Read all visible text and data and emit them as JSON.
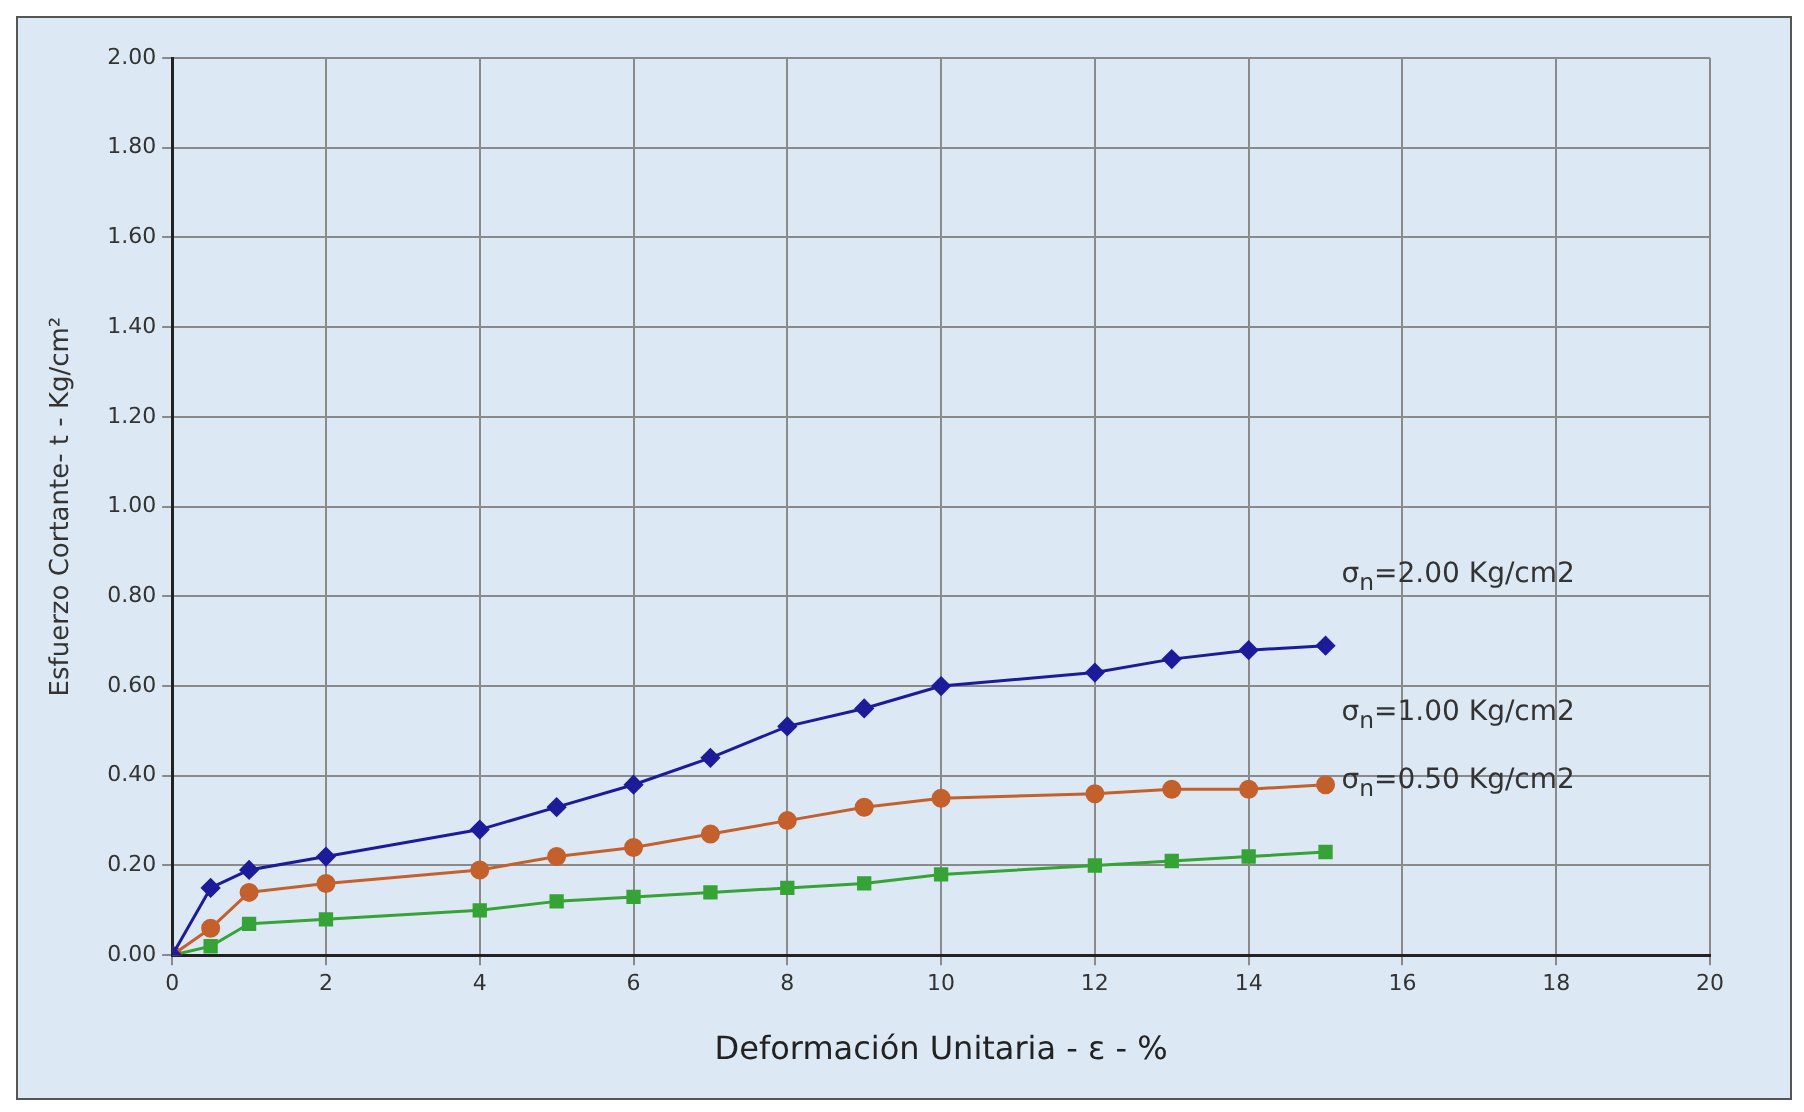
{
  "chart_data": {
    "type": "line",
    "xlabel": "Deformación Unitaria - ε - %",
    "ylabel": "Esfuerzo Cortante- t - Kg/cm²",
    "x": [
      0,
      0.5,
      1,
      2,
      4,
      5,
      6,
      7,
      8,
      9,
      10,
      12,
      13,
      14,
      15
    ],
    "series": [
      {
        "name": "σ$_{n}$=2.00 Kg/cm2",
        "color": "#1c1c9a",
        "marker": "diamond",
        "values": [
          0,
          0.15,
          0.19,
          0.22,
          0.28,
          0.33,
          0.38,
          0.44,
          0.51,
          0.55,
          0.6,
          0.63,
          0.66,
          0.68,
          0.69
        ]
      },
      {
        "name": "σ$_{n}$=1.00 Kg/cm2",
        "color": "#c4602c",
        "marker": "circle",
        "values": [
          0,
          0.06,
          0.14,
          0.16,
          0.19,
          0.22,
          0.24,
          0.27,
          0.3,
          0.33,
          0.35,
          0.36,
          0.37,
          0.37,
          0.38
        ]
      },
      {
        "name": "σ$_{n}$=0.50 Kg/cm2",
        "color": "#36a336",
        "marker": "square",
        "values": [
          0,
          0.02,
          0.07,
          0.08,
          0.1,
          0.12,
          0.13,
          0.14,
          0.15,
          0.16,
          0.18,
          0.2,
          0.21,
          0.22,
          0.23
        ]
      }
    ],
    "xlim": [
      0,
      20
    ],
    "xticks": [
      0,
      2,
      4,
      6,
      8,
      10,
      12,
      14,
      16,
      18,
      20
    ],
    "ylim": [
      0,
      2
    ],
    "yticks": [
      {
        "value": 0,
        "label": "0.00"
      },
      {
        "value": 0.2,
        "label": "0.20"
      },
      {
        "value": 0.4,
        "label": "0.40"
      },
      {
        "value": 0.6,
        "label": "0.60"
      },
      {
        "value": 0.8,
        "label": "0.80"
      },
      {
        "value": 1,
        "label": "1.00"
      },
      {
        "value": 1.2,
        "label": "1.20"
      },
      {
        "value": 1.4,
        "label": "1.40"
      },
      {
        "value": 1.6,
        "label": "1.60"
      },
      {
        "value": 1.8,
        "label": "1.80"
      },
      {
        "value": 2,
        "label": "2.00"
      }
    ],
    "grid": true,
    "legend": false,
    "line_style": "solid"
  }
}
